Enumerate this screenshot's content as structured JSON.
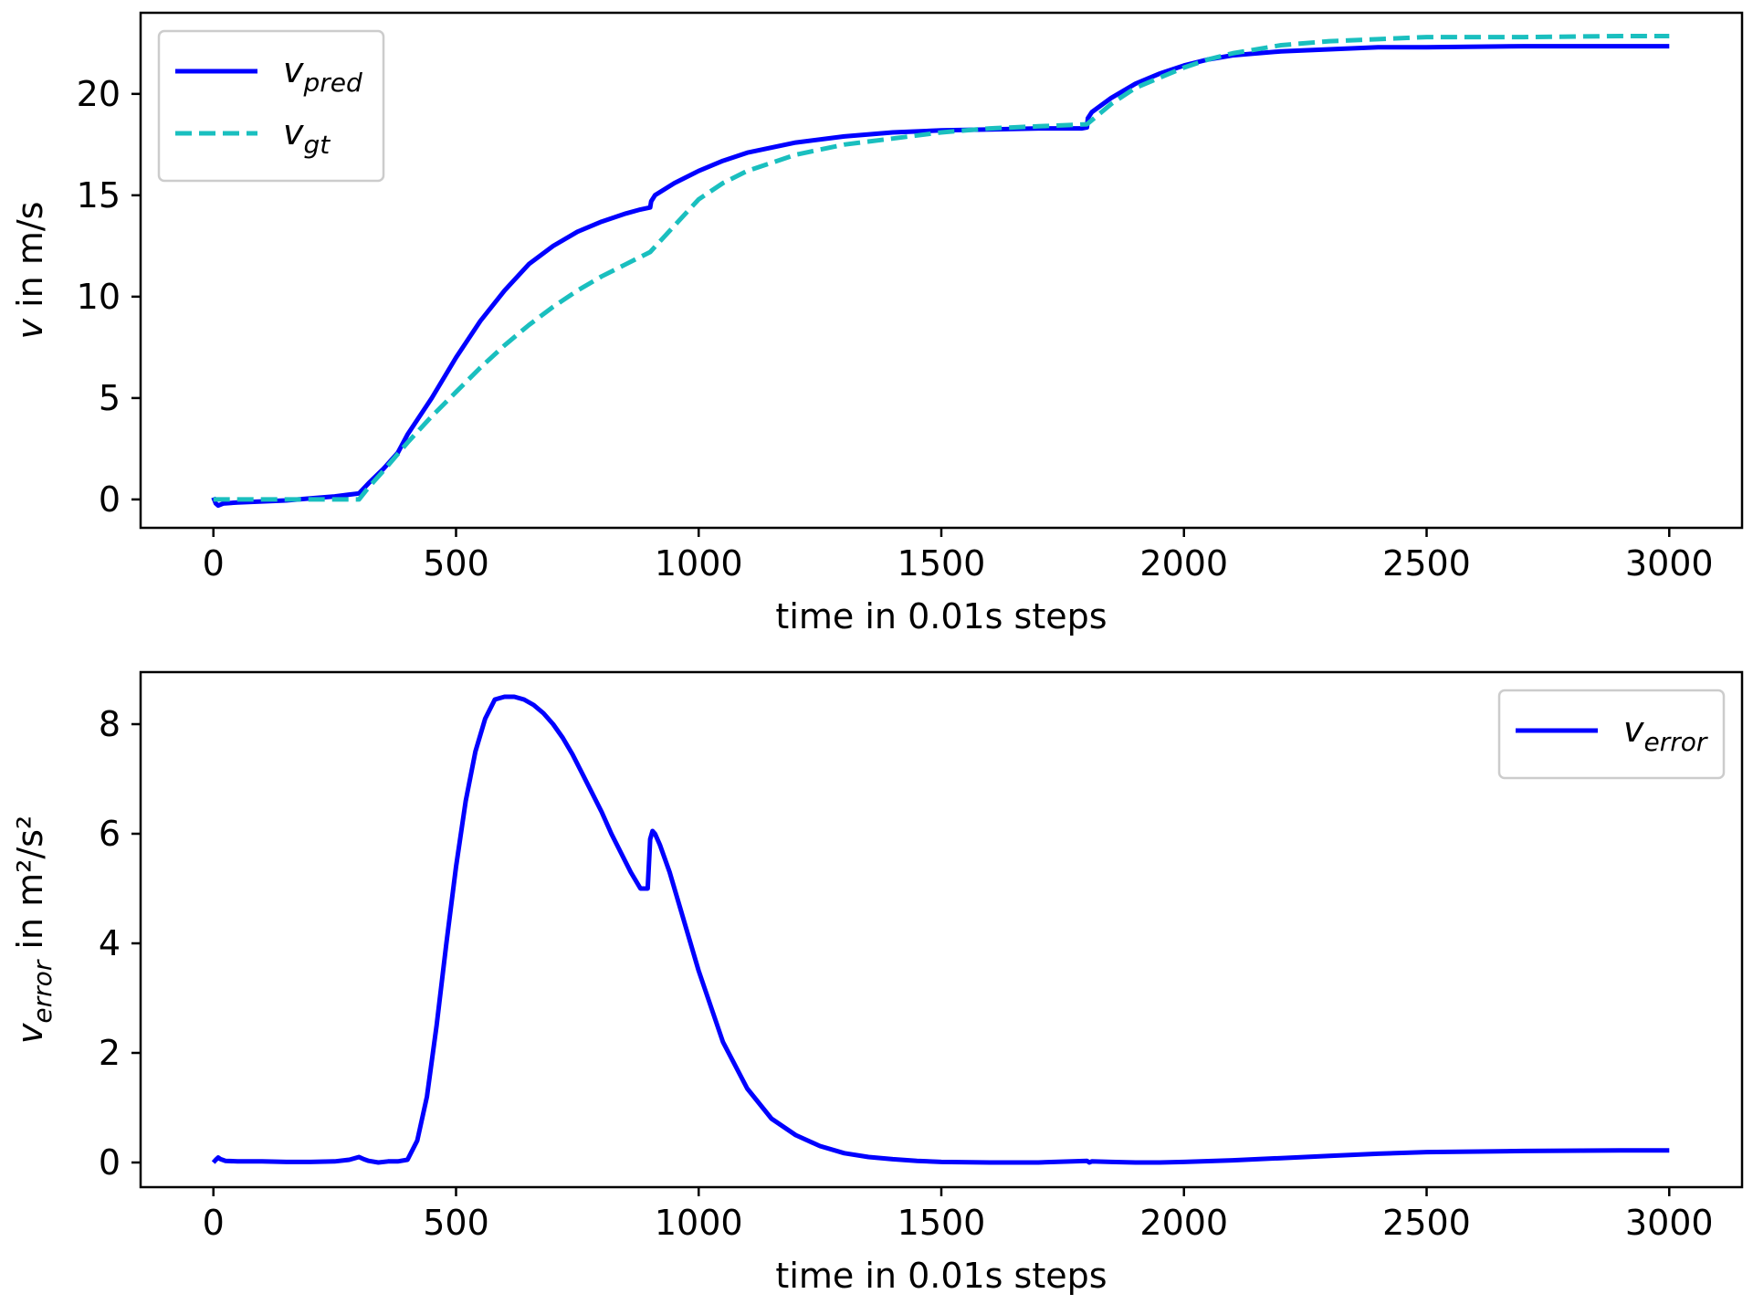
{
  "chart_data": [
    {
      "type": "line",
      "xlabel": "time in 0.01s steps",
      "ylabel": {
        "prefix": "v",
        "suffix": " in m/s"
      },
      "xlim": [
        -150,
        3150
      ],
      "ylim": [
        -1.4,
        24
      ],
      "xticks": [
        0,
        500,
        1000,
        1500,
        2000,
        2500,
        3000
      ],
      "yticks": [
        0,
        5,
        10,
        15,
        20
      ],
      "legend_position": "upper left",
      "grid": false,
      "series": [
        {
          "name": "v_pred",
          "name_base": "v",
          "name_sub": "pred",
          "color": "#0000ff",
          "style": "solid",
          "x": [
            0,
            5,
            10,
            20,
            50,
            100,
            150,
            200,
            250,
            300,
            320,
            350,
            380,
            400,
            450,
            500,
            550,
            600,
            650,
            700,
            750,
            800,
            850,
            880,
            900,
            902,
            910,
            950,
            1000,
            1050,
            1100,
            1200,
            1300,
            1400,
            1500,
            1600,
            1700,
            1790,
            1800,
            1802,
            1810,
            1850,
            1900,
            1950,
            2000,
            2050,
            2100,
            2200,
            2300,
            2400,
            2500,
            2700,
            2900,
            3000
          ],
          "y": [
            0.1,
            -0.2,
            -0.3,
            -0.2,
            -0.15,
            -0.1,
            -0.05,
            0.05,
            0.15,
            0.3,
            0.8,
            1.5,
            2.3,
            3.2,
            5.0,
            7.0,
            8.8,
            10.3,
            11.6,
            12.5,
            13.2,
            13.7,
            14.1,
            14.3,
            14.4,
            14.7,
            15.0,
            15.6,
            16.2,
            16.7,
            17.1,
            17.6,
            17.9,
            18.1,
            18.2,
            18.25,
            18.3,
            18.3,
            18.35,
            18.8,
            19.1,
            19.8,
            20.5,
            21.0,
            21.4,
            21.7,
            21.9,
            22.1,
            22.2,
            22.3,
            22.3,
            22.35,
            22.35,
            22.35
          ]
        },
        {
          "name": "v_gt",
          "name_base": "v",
          "name_sub": "gt",
          "color": "#1abfbf",
          "style": "dashed",
          "x": [
            0,
            50,
            100,
            150,
            200,
            250,
            300,
            320,
            350,
            400,
            450,
            500,
            550,
            600,
            650,
            700,
            750,
            800,
            850,
            900,
            950,
            1000,
            1050,
            1100,
            1200,
            1300,
            1400,
            1500,
            1600,
            1700,
            1800,
            1850,
            1900,
            1950,
            2000,
            2050,
            2100,
            2200,
            2300,
            2400,
            2500,
            2700,
            2900,
            3000
          ],
          "y": [
            0,
            0,
            0,
            0,
            0,
            0,
            0,
            0.6,
            1.4,
            2.8,
            4.1,
            5.3,
            6.5,
            7.6,
            8.6,
            9.5,
            10.3,
            11.0,
            11.6,
            12.2,
            13.5,
            14.8,
            15.6,
            16.2,
            17.0,
            17.5,
            17.8,
            18.1,
            18.3,
            18.4,
            18.5,
            19.5,
            20.3,
            20.8,
            21.3,
            21.7,
            22.0,
            22.4,
            22.6,
            22.7,
            22.8,
            22.8,
            22.85,
            22.85
          ]
        }
      ]
    },
    {
      "type": "line",
      "xlabel": "time in 0.01s steps",
      "ylabel": {
        "prefix": "v",
        "sub": "error",
        "suffix": " in m²/s²"
      },
      "xlim": [
        -150,
        3150
      ],
      "ylim": [
        -0.45,
        8.95
      ],
      "xticks": [
        0,
        500,
        1000,
        1500,
        2000,
        2500,
        3000
      ],
      "yticks": [
        0,
        2,
        4,
        6,
        8
      ],
      "legend_position": "upper right",
      "grid": false,
      "series": [
        {
          "name": "v_error",
          "name_base": "v",
          "name_sub": "error",
          "color": "#0000ff",
          "style": "solid",
          "x": [
            0,
            5,
            10,
            15,
            25,
            50,
            100,
            150,
            200,
            250,
            280,
            300,
            310,
            320,
            340,
            360,
            380,
            400,
            420,
            440,
            460,
            480,
            500,
            520,
            540,
            560,
            580,
            600,
            620,
            640,
            660,
            680,
            700,
            720,
            740,
            760,
            780,
            800,
            820,
            840,
            860,
            880,
            895,
            900,
            905,
            910,
            920,
            940,
            960,
            980,
            1000,
            1050,
            1100,
            1150,
            1200,
            1250,
            1300,
            1350,
            1400,
            1450,
            1500,
            1600,
            1700,
            1800,
            1805,
            1810,
            1850,
            1900,
            1950,
            2000,
            2100,
            2200,
            2300,
            2400,
            2500,
            2700,
            2900,
            3000
          ],
          "y": [
            0,
            0.05,
            0.09,
            0.06,
            0.03,
            0.02,
            0.02,
            0.01,
            0.01,
            0.02,
            0.05,
            0.1,
            0.06,
            0.03,
            0.0,
            0.02,
            0.02,
            0.05,
            0.4,
            1.2,
            2.5,
            4.0,
            5.4,
            6.6,
            7.5,
            8.1,
            8.45,
            8.5,
            8.5,
            8.45,
            8.35,
            8.2,
            8.0,
            7.75,
            7.45,
            7.1,
            6.75,
            6.4,
            6.0,
            5.65,
            5.3,
            5.0,
            5.0,
            5.9,
            6.05,
            6.0,
            5.8,
            5.3,
            4.7,
            4.1,
            3.5,
            2.2,
            1.35,
            0.8,
            0.5,
            0.3,
            0.17,
            0.1,
            0.06,
            0.03,
            0.01,
            0.0,
            0.0,
            0.03,
            0.0,
            0.02,
            0.01,
            0.0,
            0.0,
            0.01,
            0.04,
            0.08,
            0.12,
            0.16,
            0.19,
            0.21,
            0.22,
            0.22
          ]
        }
      ]
    }
  ]
}
